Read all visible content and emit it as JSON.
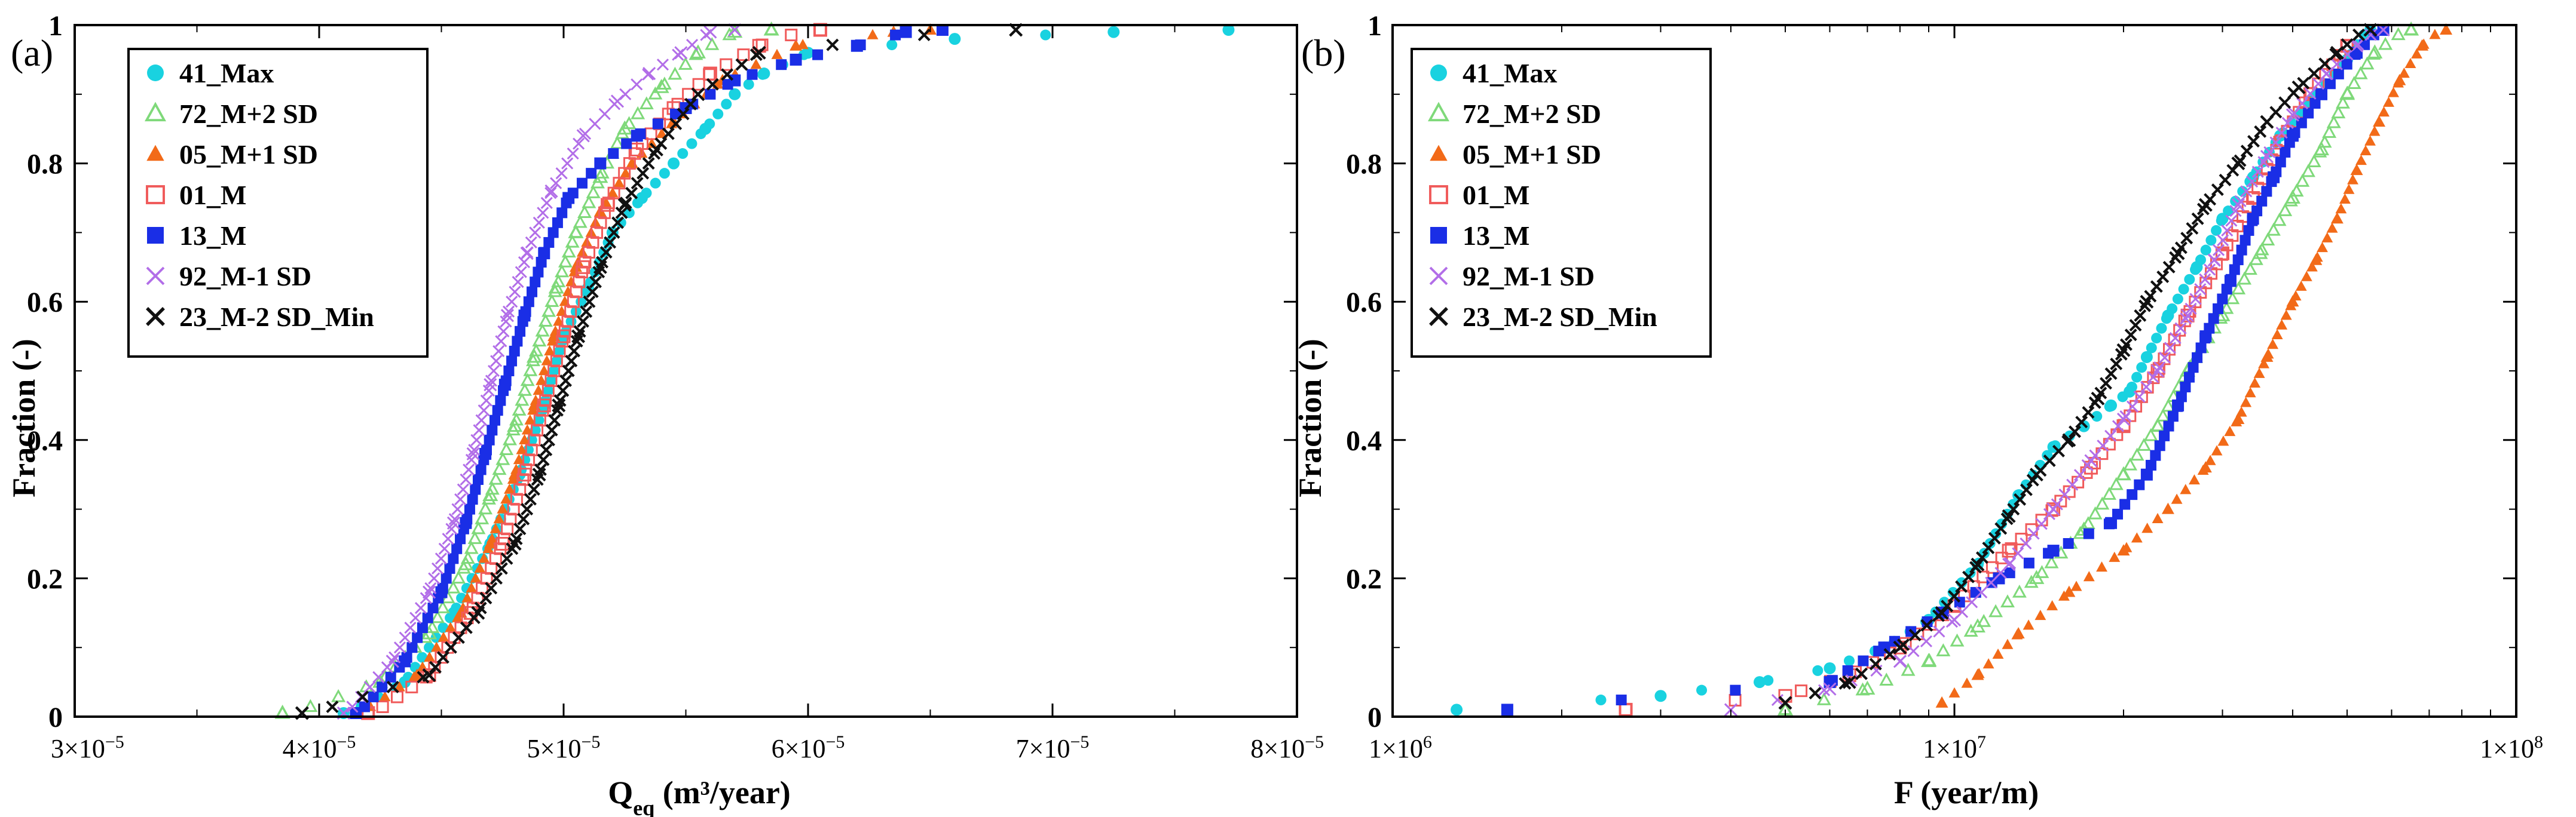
{
  "chart_data": [
    {
      "panel_label": "(a)",
      "type": "line",
      "title": "",
      "xlabel": "Q",
      "xlabel_sub": "eq",
      "xlabel_unit": " (m³/year)",
      "ylabel": "Fraction (-)",
      "xscale": "linear",
      "xlim": [
        3e-05,
        8e-05
      ],
      "ylim": [
        0,
        1
      ],
      "xticks": [
        3e-05,
        4e-05,
        5e-05,
        6e-05,
        7e-05,
        8e-05
      ],
      "xtick_labels": [
        {
          "m": "3",
          "e": "−5"
        },
        {
          "m": "4",
          "e": "−5"
        },
        {
          "m": "5",
          "e": "−5"
        },
        {
          "m": "6",
          "e": "−5"
        },
        {
          "m": "7",
          "e": "−5"
        },
        {
          "m": "8",
          "e": "−5"
        }
      ],
      "yticks": [
        0,
        0.2,
        0.4,
        0.6,
        0.8,
        1
      ],
      "ytick_labels": [
        "0",
        "0.2",
        "0.4",
        "0.6",
        "0.8",
        "1"
      ],
      "legend_position": "top-left",
      "series": [
        {
          "name": "41_Max",
          "marker": "circle",
          "color": "#19d2e0",
          "x": [
            4.1e-05,
            4.35e-05,
            4.55e-05,
            4.7e-05,
            4.82e-05,
            4.92e-05,
            5e-05,
            5.1e-05,
            5.2e-05,
            5.32e-05,
            5.45e-05,
            5.58e-05,
            5.7e-05,
            5.82e-05,
            6e-05,
            6.6e-05,
            7.25e-05,
            7.72e-05
          ],
          "y": [
            0.0,
            0.05,
            0.15,
            0.25,
            0.35,
            0.45,
            0.55,
            0.62,
            0.7,
            0.75,
            0.8,
            0.85,
            0.9,
            0.93,
            0.96,
            0.98,
            0.99,
            1.0
          ]
        },
        {
          "name": "72_M+2 SD",
          "marker": "triangle-open",
          "color": "#7fd97a",
          "x": [
            3.85e-05,
            4.25e-05,
            4.45e-05,
            4.6e-05,
            4.7e-05,
            4.8e-05,
            4.88e-05,
            4.97e-05,
            5.05e-05,
            5.15e-05,
            5.25e-05,
            5.4e-05,
            5.55e-05,
            5.7e-05,
            5.85e-05
          ],
          "y": [
            0.0,
            0.05,
            0.12,
            0.22,
            0.32,
            0.42,
            0.52,
            0.62,
            0.7,
            0.78,
            0.85,
            0.91,
            0.96,
            0.99,
            1.0
          ]
        },
        {
          "name": "05_M+1 SD",
          "marker": "triangle",
          "color": "#f26a18",
          "x": [
            4.15e-05,
            4.4e-05,
            4.58e-05,
            4.7e-05,
            4.8e-05,
            4.88e-05,
            4.96e-05,
            5.05e-05,
            5.15e-05,
            5.28e-05,
            5.45e-05,
            5.65e-05,
            5.95e-05,
            6.35e-05,
            6.5e-05
          ],
          "y": [
            0.0,
            0.06,
            0.15,
            0.25,
            0.35,
            0.45,
            0.55,
            0.65,
            0.73,
            0.8,
            0.86,
            0.92,
            0.97,
            0.99,
            1.0
          ]
        },
        {
          "name": "01_M",
          "marker": "square-open",
          "color": "#f05a5a",
          "x": [
            4.2e-05,
            4.45e-05,
            4.62e-05,
            4.75e-05,
            4.84e-05,
            4.92e-05,
            5e-05,
            5.08e-05,
            5.18e-05,
            5.3e-05,
            5.45e-05,
            5.6e-05,
            5.8e-05,
            6.05e-05
          ],
          "y": [
            0.0,
            0.06,
            0.15,
            0.25,
            0.35,
            0.45,
            0.55,
            0.65,
            0.74,
            0.82,
            0.88,
            0.93,
            0.97,
            1.0
          ]
        },
        {
          "name": "13_M",
          "marker": "square",
          "color": "#1a2ee6",
          "x": [
            4.15e-05,
            4.35e-05,
            4.5e-05,
            4.6e-05,
            4.68e-05,
            4.76e-05,
            4.84e-05,
            4.92e-05,
            5.02e-05,
            5.15e-05,
            5.3e-05,
            5.5e-05,
            5.7e-05,
            5.95e-05,
            6.2e-05,
            6.4e-05,
            6.55e-05
          ],
          "y": [
            0.0,
            0.08,
            0.18,
            0.28,
            0.38,
            0.48,
            0.58,
            0.67,
            0.75,
            0.8,
            0.84,
            0.88,
            0.92,
            0.95,
            0.97,
            0.99,
            1.0
          ]
        },
        {
          "name": "92_M-1 SD",
          "marker": "x",
          "color": "#b26ee8",
          "x": [
            4.1e-05,
            4.3e-05,
            4.45e-05,
            4.55e-05,
            4.63e-05,
            4.7e-05,
            4.77e-05,
            4.85e-05,
            4.95e-05,
            5.08e-05,
            5.22e-05,
            5.35e-05,
            5.48e-05,
            5.6e-05,
            5.7e-05
          ],
          "y": [
            0.0,
            0.08,
            0.18,
            0.28,
            0.38,
            0.48,
            0.58,
            0.67,
            0.76,
            0.84,
            0.89,
            0.93,
            0.96,
            0.99,
            1.0
          ]
        },
        {
          "name": "23_M-2 SD_Min",
          "marker": "cross",
          "color": "#111111",
          "x": [
            3.93e-05,
            4.45e-05,
            4.65e-05,
            4.8e-05,
            4.9e-05,
            4.98e-05,
            5.06e-05,
            5.15e-05,
            5.25e-05,
            5.38e-05,
            5.55e-05,
            5.8e-05,
            6.85e-05
          ],
          "y": [
            0.0,
            0.06,
            0.15,
            0.25,
            0.35,
            0.45,
            0.55,
            0.65,
            0.74,
            0.82,
            0.9,
            0.96,
            1.0
          ]
        }
      ]
    },
    {
      "panel_label": "(b)",
      "type": "line",
      "title": "",
      "xlabel": "F (year/m)",
      "xlabel_sub": "",
      "xlabel_unit": "",
      "ylabel": "Fraction (-)",
      "xscale": "log",
      "xlim": [
        1000000.0,
        100000000.0
      ],
      "ylim": [
        0,
        1
      ],
      "xticks": [
        1000000.0,
        10000000.0,
        100000000.0
      ],
      "xtick_labels": [
        {
          "m": "1",
          "e": "6"
        },
        {
          "m": "1",
          "e": "7"
        },
        {
          "m": "1",
          "e": "8"
        }
      ],
      "yticks": [
        0,
        0.2,
        0.4,
        0.6,
        0.8,
        1
      ],
      "ytick_labels": [
        "0",
        "0.2",
        "0.4",
        "0.6",
        "0.8",
        "1"
      ],
      "legend_position": "top-left",
      "series": [
        {
          "name": "41_Max",
          "marker": "circle",
          "color": "#19d2e0",
          "x": [
            1300000.0,
            3000000.0,
            4500000.0,
            6000000.0,
            7500000.0,
            9000000.0,
            11000000.0,
            13000000.0,
            15000000.0,
            17000000.0,
            19000000.0,
            20500000.0,
            22000000.0,
            24000000.0,
            27000000.0,
            30000000.0,
            34000000.0,
            38000000.0,
            43000000.0,
            50000000.0,
            55000000.0
          ],
          "y": [
            0.01,
            0.03,
            0.05,
            0.07,
            0.1,
            0.14,
            0.22,
            0.32,
            0.39,
            0.42,
            0.45,
            0.47,
            0.52,
            0.58,
            0.65,
            0.72,
            0.78,
            0.84,
            0.89,
            0.95,
            1.0
          ]
        },
        {
          "name": "72_M+2 SD",
          "marker": "triangle-open",
          "color": "#7fd97a",
          "x": [
            5000000.0,
            7000000.0,
            9000000.0,
            11000000.0,
            14000000.0,
            17000000.0,
            20000000.0,
            23000000.0,
            26000000.0,
            30000000.0,
            35000000.0,
            40000000.0,
            45000000.0,
            50000000.0,
            56000000.0,
            65000000.0
          ],
          "y": [
            0.01,
            0.04,
            0.08,
            0.13,
            0.2,
            0.27,
            0.35,
            0.42,
            0.5,
            0.58,
            0.67,
            0.75,
            0.82,
            0.9,
            0.96,
            1.0
          ]
        },
        {
          "name": "05_M+1 SD",
          "marker": "triangle",
          "color": "#f26a18",
          "x": [
            9500000.0,
            11000000.0,
            13000000.0,
            16000000.0,
            20000000.0,
            24000000.0,
            28000000.0,
            32000000.0,
            36000000.0,
            40000000.0,
            44000000.0,
            48000000.0,
            52000000.0,
            57000000.0,
            62000000.0,
            68000000.0,
            75000000.0
          ],
          "y": [
            0.02,
            0.06,
            0.12,
            0.18,
            0.24,
            0.3,
            0.36,
            0.43,
            0.52,
            0.6,
            0.66,
            0.72,
            0.79,
            0.86,
            0.92,
            0.97,
            1.0
          ]
        },
        {
          "name": "01_M",
          "marker": "square-open",
          "color": "#f05a5a",
          "x": [
            2600000.0,
            5000000.0,
            6500000.0,
            8000000.0,
            10000000.0,
            12500000.0,
            15000000.0,
            17500000.0,
            20000000.0,
            23000000.0,
            26000000.0,
            30000000.0,
            34000000.0,
            38000000.0,
            43000000.0,
            50000000.0
          ],
          "y": [
            0.01,
            0.03,
            0.06,
            0.1,
            0.16,
            0.24,
            0.3,
            0.36,
            0.42,
            0.5,
            0.58,
            0.67,
            0.75,
            0.83,
            0.9,
            0.97
          ]
        },
        {
          "name": "13_M",
          "marker": "square",
          "color": "#1a2ee6",
          "x": [
            1600000.0,
            6000000.0,
            7500000.0,
            9500000.0,
            12000000.0,
            15000000.0,
            19000000.0,
            22000000.0,
            25000000.0,
            28000000.0,
            31000000.0,
            34000000.0,
            37000000.0,
            40000000.0,
            45000000.0,
            52000000.0,
            58000000.0
          ],
          "y": [
            0.01,
            0.05,
            0.1,
            0.15,
            0.2,
            0.24,
            0.28,
            0.35,
            0.45,
            0.55,
            0.63,
            0.72,
            0.78,
            0.84,
            0.9,
            0.96,
            1.0
          ]
        },
        {
          "name": "92_M-1 SD",
          "marker": "x",
          "color": "#b26ee8",
          "x": [
            4000000.0,
            6000000.0,
            8000000.0,
            10000000.0,
            12500000.0,
            15000000.0,
            17500000.0,
            20000000.0,
            23000000.0,
            26000000.0,
            29000000.0,
            32000000.0,
            36000000.0,
            40000000.0,
            46000000.0,
            52000000.0,
            58000000.0
          ],
          "y": [
            0.01,
            0.04,
            0.08,
            0.14,
            0.22,
            0.3,
            0.37,
            0.43,
            0.5,
            0.58,
            0.66,
            0.74,
            0.81,
            0.87,
            0.93,
            0.97,
            1.0
          ]
        },
        {
          "name": "23_M-2 SD_Min",
          "marker": "cross",
          "color": "#111111",
          "x": [
            5000000.0,
            6500000.0,
            8000000.0,
            9500000.0,
            11000000.0,
            12500000.0,
            14000000.0,
            16000000.0,
            18000000.0,
            20000000.0,
            22000000.0,
            25000000.0,
            28000000.0,
            32000000.0,
            36000000.0,
            41000000.0,
            48000000.0,
            55000000.0
          ],
          "y": [
            0.02,
            0.05,
            0.1,
            0.15,
            0.22,
            0.29,
            0.35,
            0.4,
            0.46,
            0.53,
            0.6,
            0.67,
            0.74,
            0.8,
            0.86,
            0.91,
            0.96,
            1.0
          ]
        }
      ]
    }
  ]
}
